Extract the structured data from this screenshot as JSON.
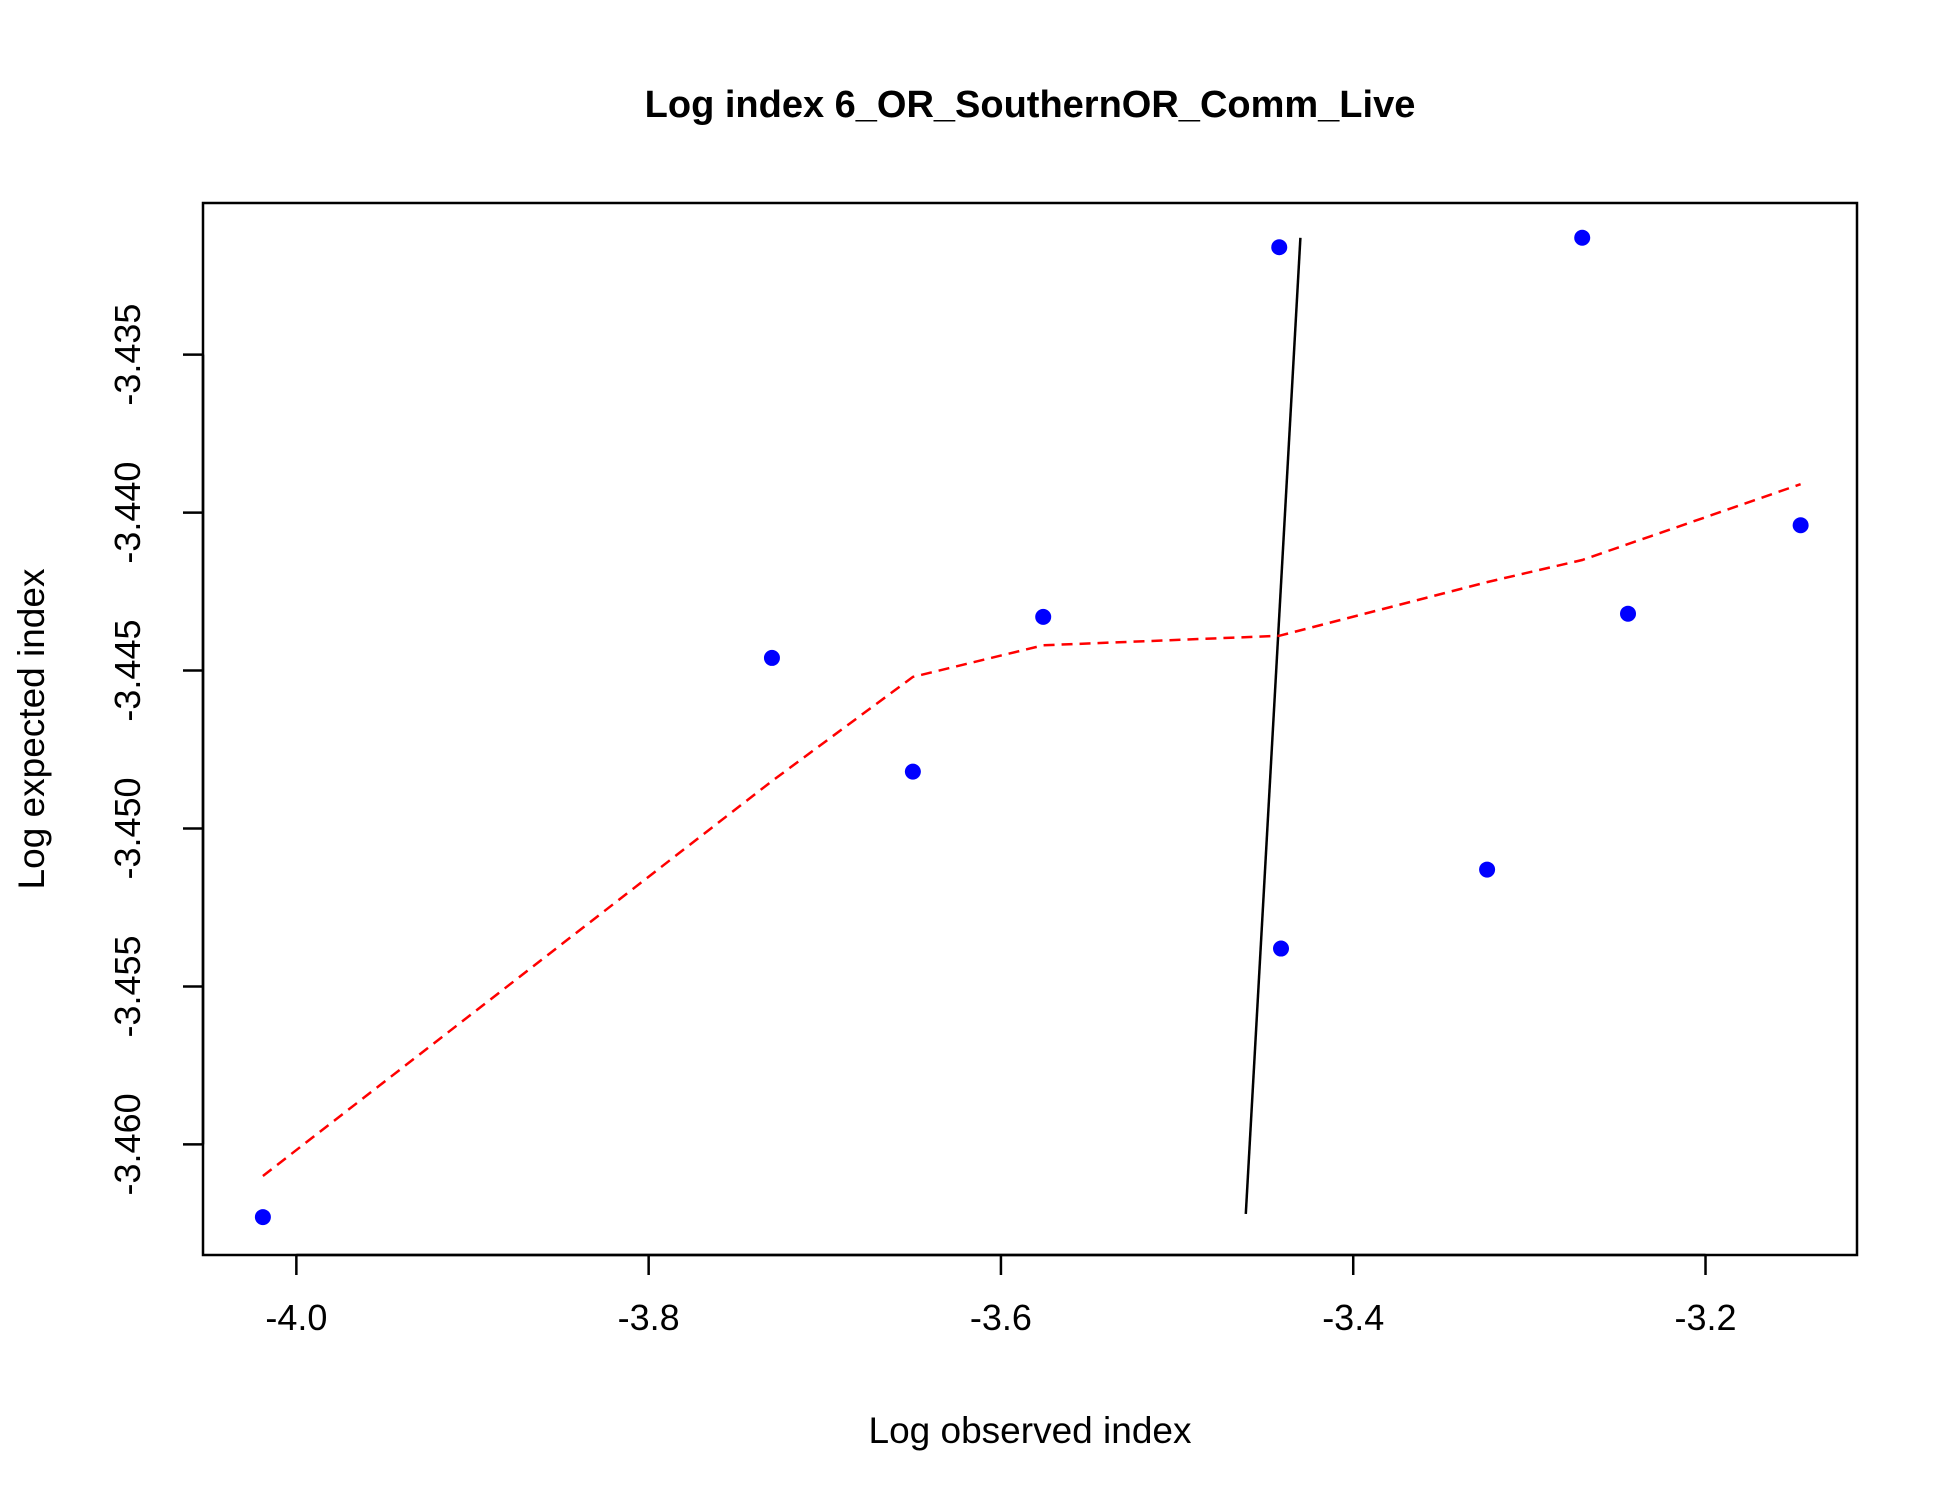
{
  "chart_data": {
    "type": "scatter",
    "title": "Log index 6_OR_SouthernOR_Comm_Live",
    "xlabel": "Log observed index",
    "ylabel": "Log expected index",
    "xlim": [
      -4.053,
      -3.114
    ],
    "ylim": [
      -3.4635,
      -3.4302
    ],
    "xticks": [
      -4.0,
      -3.8,
      -3.6,
      -3.4,
      -3.2
    ],
    "xtick_labels": [
      "-4.0",
      "-3.8",
      "-3.6",
      "-3.4",
      "-3.2"
    ],
    "yticks": [
      -3.435,
      -3.44,
      -3.445,
      -3.45,
      -3.455,
      -3.46
    ],
    "ytick_labels": [
      "-3.435",
      "-3.440",
      "-3.445",
      "-3.450",
      "-3.455",
      "-3.460"
    ],
    "points": {
      "color": "#0000ff",
      "x": [
        -4.019,
        -3.73,
        -3.65,
        -3.576,
        -3.442,
        -3.441,
        -3.324,
        -3.27,
        -3.244,
        -3.146
      ],
      "y": [
        -3.4623,
        -3.4446,
        -3.4482,
        -3.4433,
        -3.4316,
        -3.4538,
        -3.4513,
        -3.4313,
        -3.4432,
        -3.4404
      ]
    },
    "lines": [
      {
        "style": "solid",
        "color": "#000000",
        "x": [
          -3.461,
          -3.43
        ],
        "y": [
          -3.4622,
          -3.4313
        ]
      },
      {
        "style": "dashed",
        "color": "#ff0000",
        "x": [
          -4.019,
          -3.73,
          -3.65,
          -3.576,
          -3.442,
          -3.324,
          -3.27,
          -3.146
        ],
        "y": [
          -3.461,
          -3.4485,
          -3.4452,
          -3.4442,
          -3.4439,
          -3.4422,
          -3.4415,
          -3.4391
        ]
      }
    ],
    "grid": false,
    "legend": "none"
  }
}
